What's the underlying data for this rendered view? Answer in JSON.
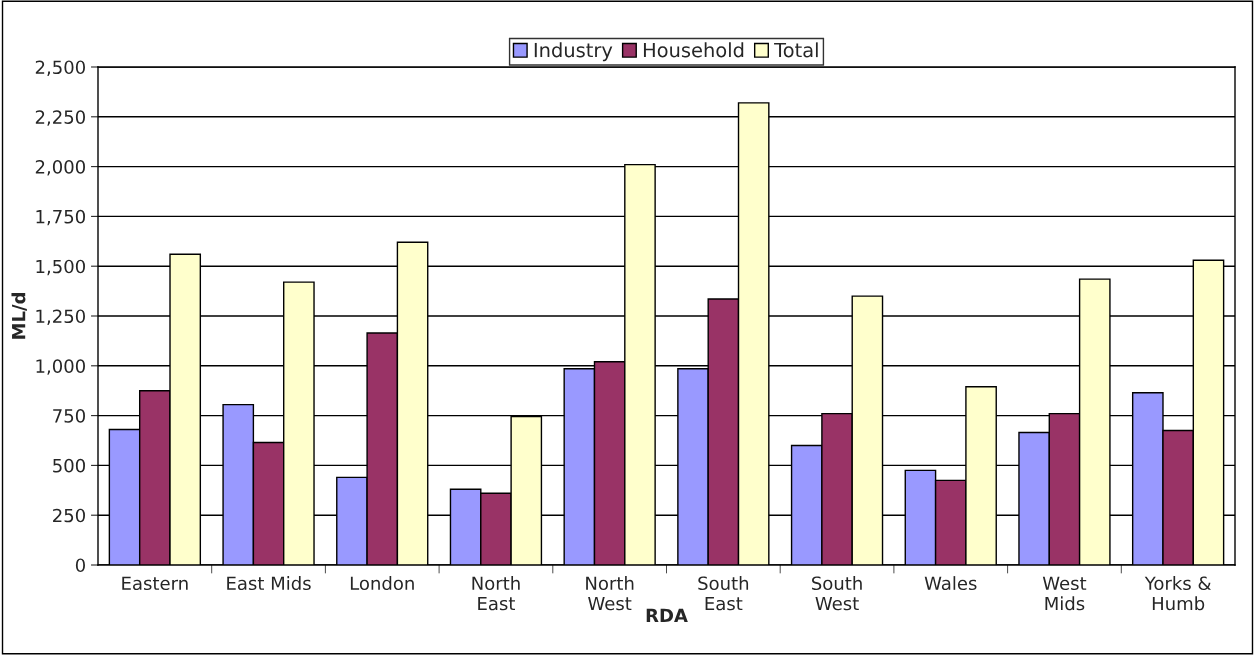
{
  "chart_data": {
    "type": "bar",
    "xlabel": "RDA",
    "ylabel": "ML/d",
    "categories": [
      "Eastern",
      "East Mids",
      "London",
      "North\nEast",
      "North\nWest",
      "South\nEast",
      "South\nWest",
      "Wales",
      "West\nMids",
      "Yorks &\nHumb"
    ],
    "series": [
      {
        "name": "Industry",
        "color": "#9999ff",
        "values": [
          680,
          805,
          440,
          380,
          985,
          985,
          600,
          475,
          665,
          865
        ]
      },
      {
        "name": "Household",
        "color": "#993366",
        "values": [
          875,
          615,
          1165,
          360,
          1020,
          1335,
          760,
          425,
          760,
          675
        ]
      },
      {
        "name": "Total",
        "color": "#ffffcc",
        "values": [
          1560,
          1420,
          1620,
          745,
          2010,
          2320,
          1350,
          895,
          1435,
          1530
        ]
      }
    ],
    "ylim": [
      0,
      2500
    ],
    "yticks": [
      {
        "value": 0,
        "label": "0"
      },
      {
        "value": 250,
        "label": "250"
      },
      {
        "value": 500,
        "label": "500"
      },
      {
        "value": 750,
        "label": "750"
      },
      {
        "value": 1000,
        "label": "1,000"
      },
      {
        "value": 1250,
        "label": "1,250"
      },
      {
        "value": 1500,
        "label": "1,500"
      },
      {
        "value": 1750,
        "label": "1,750"
      },
      {
        "value": 2000,
        "label": "2,000"
      },
      {
        "value": 2250,
        "label": "2,250"
      },
      {
        "value": 2500,
        "label": "2,500"
      }
    ],
    "grid": "y",
    "legend": "top"
  }
}
